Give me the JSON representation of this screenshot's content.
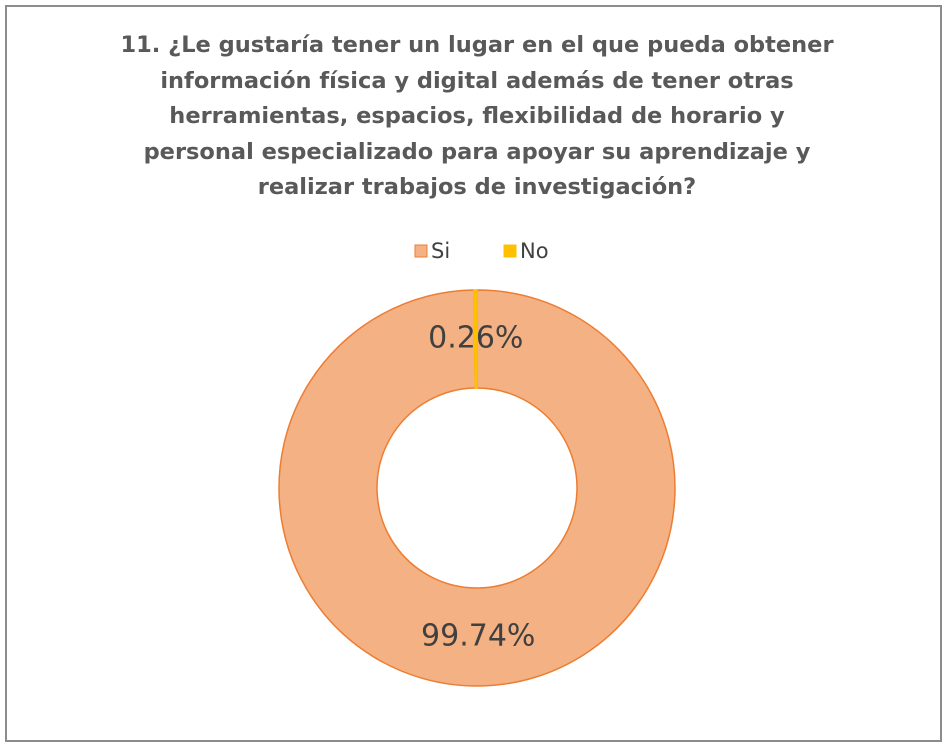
{
  "chart_data": {
    "type": "doughnut",
    "title": "11. ¿Le gustaría tener un lugar en el que pueda obtener información física y digital además de tener otras herramientas, espacios, flexibilidad de horario y personal especializado para apoyar su aprendizaje y realizar trabajos de investigación?",
    "categories": [
      "Si",
      "No"
    ],
    "values": [
      99.74,
      0.26
    ],
    "value_labels": [
      "99.74%",
      "0.26%"
    ],
    "colors": [
      "#f4b183",
      "#ffc000"
    ],
    "legend": "top"
  }
}
